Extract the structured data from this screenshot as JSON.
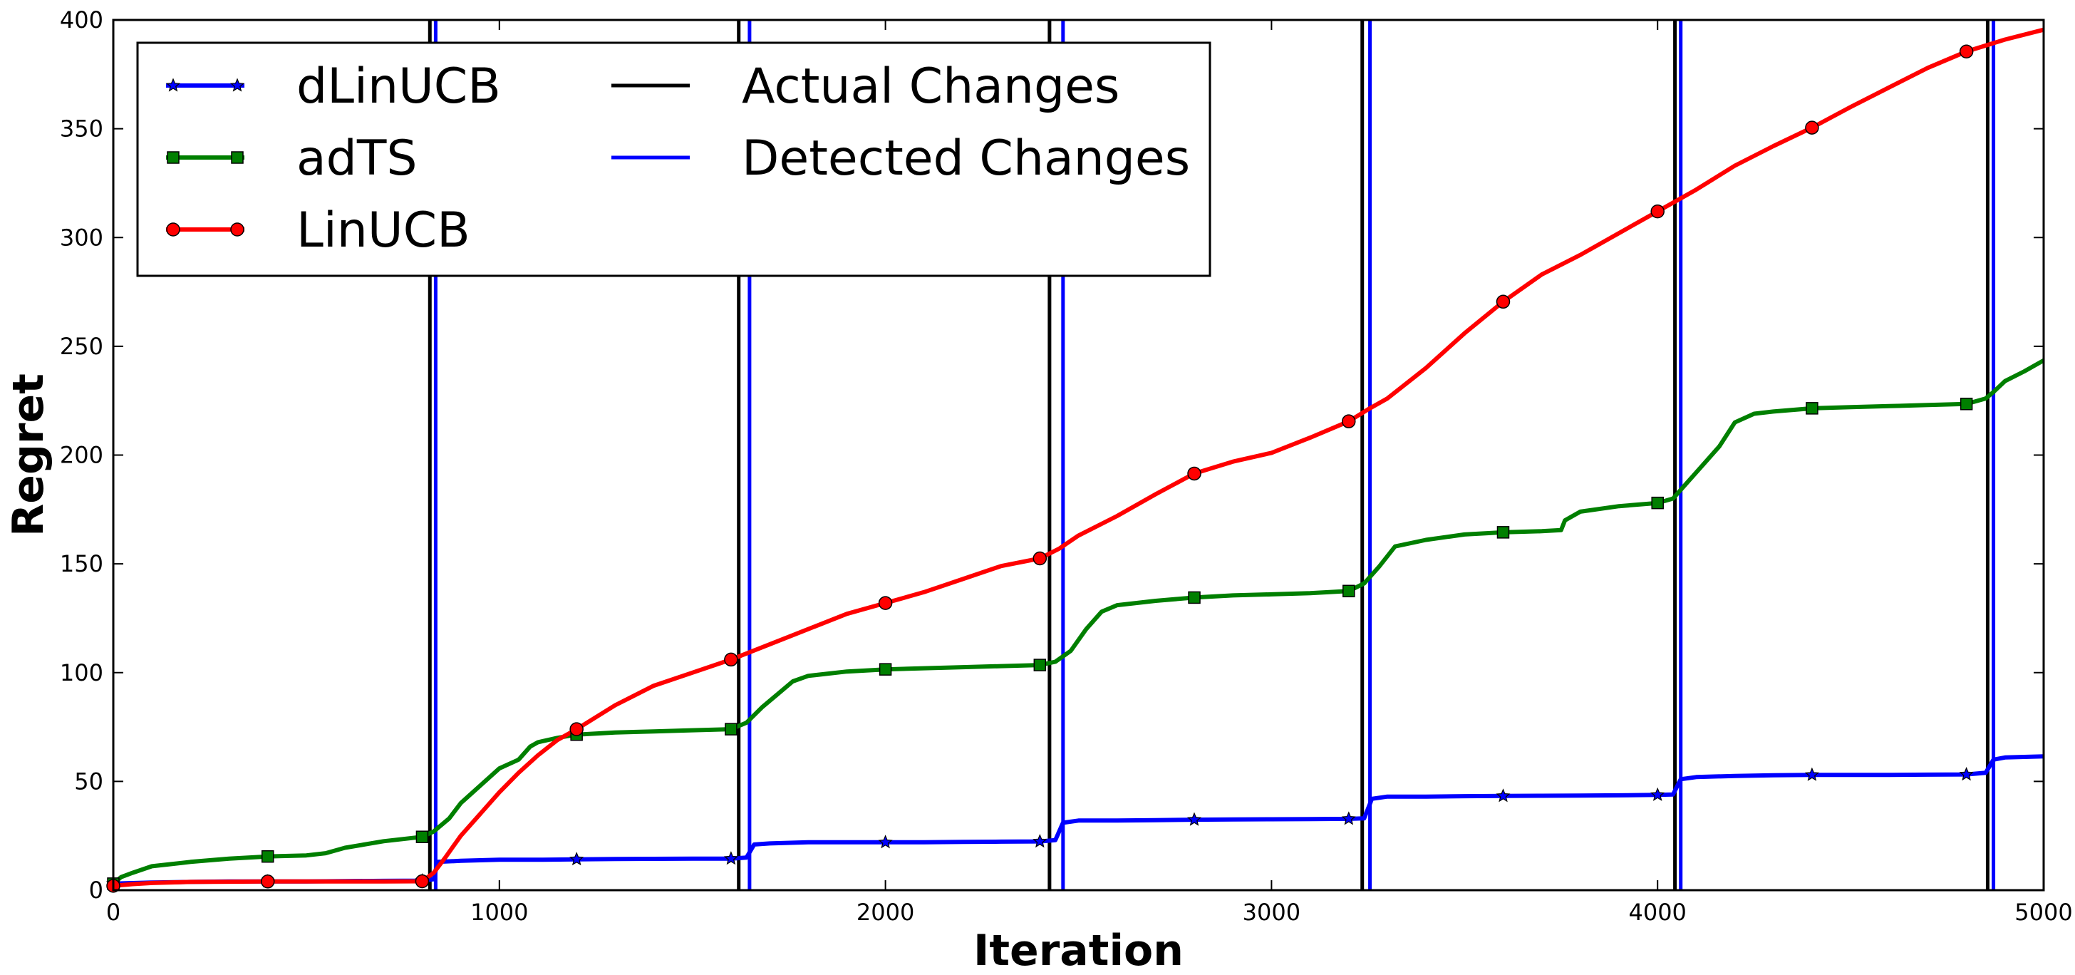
{
  "chart_data": {
    "type": "line",
    "title": "",
    "xlabel": "Iteration",
    "ylabel": "Regret",
    "xlim": [
      0,
      5000
    ],
    "ylim": [
      0,
      400
    ],
    "xticks": [
      0,
      1000,
      2000,
      3000,
      4000,
      5000
    ],
    "yticks": [
      0,
      50,
      100,
      150,
      200,
      250,
      300,
      350,
      400
    ],
    "grid": false,
    "legend_position": "top-left",
    "series": [
      {
        "name": "dLinUCB",
        "color": "#0000ff",
        "marker": "star",
        "x": [
          0,
          100,
          200,
          300,
          400,
          500,
          600,
          700,
          800,
          830,
          840,
          900,
          1000,
          1100,
          1200,
          1300,
          1400,
          1500,
          1600,
          1640,
          1660,
          1700,
          1800,
          1900,
          2000,
          2100,
          2200,
          2300,
          2400,
          2440,
          2460,
          2500,
          2600,
          2700,
          2800,
          2900,
          3000,
          3100,
          3200,
          3240,
          3260,
          3300,
          3400,
          3500,
          3600,
          3700,
          3800,
          3900,
          4000,
          4040,
          4060,
          4100,
          4200,
          4300,
          4400,
          4500,
          4600,
          4700,
          4800,
          4850,
          4870,
          4900,
          5000
        ],
        "y": [
          3,
          3.5,
          3.8,
          4,
          4,
          4,
          4.2,
          4.3,
          4.4,
          5,
          13,
          13.5,
          14,
          14,
          14.2,
          14.3,
          14.4,
          14.5,
          14.5,
          15,
          21,
          21.5,
          22,
          22,
          22,
          22,
          22.2,
          22.3,
          22.4,
          23,
          31,
          32,
          32,
          32.2,
          32.4,
          32.5,
          32.6,
          32.7,
          32.8,
          33,
          42,
          43,
          43,
          43.2,
          43.3,
          43.4,
          43.5,
          43.6,
          43.8,
          44,
          51,
          52,
          52.5,
          52.8,
          53,
          53,
          53,
          53.1,
          53.2,
          54,
          60,
          61,
          61.5
        ],
        "markers_x": [
          0,
          400,
          800,
          1200,
          1600,
          2000,
          2400,
          2800,
          3200,
          3600,
          4000,
          4400,
          4800
        ],
        "markers_y": [
          3,
          4,
          4.4,
          14.2,
          14.5,
          22,
          22.4,
          32.4,
          32.8,
          43.3,
          43.8,
          53,
          53.2
        ]
      },
      {
        "name": "adTS",
        "color": "#007f00",
        "marker": "square",
        "x": [
          0,
          20,
          50,
          100,
          150,
          200,
          300,
          400,
          500,
          550,
          600,
          700,
          800,
          830,
          870,
          900,
          950,
          1000,
          1050,
          1080,
          1100,
          1150,
          1200,
          1300,
          1400,
          1500,
          1600,
          1640,
          1680,
          1720,
          1760,
          1800,
          1900,
          2000,
          2100,
          2200,
          2300,
          2400,
          2440,
          2480,
          2520,
          2560,
          2600,
          2700,
          2800,
          2900,
          3000,
          3100,
          3200,
          3240,
          3280,
          3320,
          3400,
          3500,
          3600,
          3700,
          3750,
          3760,
          3800,
          3900,
          4000,
          4040,
          4080,
          4120,
          4160,
          4200,
          4250,
          4300,
          4400,
          4500,
          4600,
          4700,
          4800,
          4850,
          4870,
          4900,
          4950,
          5000
        ],
        "y": [
          3,
          6,
          8,
          11,
          12,
          13,
          14.5,
          15.5,
          16,
          17,
          19.5,
          22.5,
          24.5,
          27,
          33,
          40,
          48,
          56,
          60,
          66,
          68,
          70,
          71.5,
          72.5,
          73,
          73.5,
          74,
          77,
          84,
          90,
          96,
          98.5,
          100.5,
          101.5,
          102,
          102.5,
          103,
          103.5,
          105,
          110,
          120,
          128,
          131,
          133,
          134.5,
          135.5,
          136,
          136.5,
          137.5,
          141,
          149,
          158,
          161,
          163.5,
          164.5,
          165,
          165.5,
          170,
          174,
          176.5,
          178,
          180,
          188,
          196,
          204,
          215,
          219,
          220,
          221.5,
          222,
          222.5,
          223,
          223.5,
          226,
          229,
          234,
          238.5,
          243.5
        ],
        "markers_x": [
          0,
          400,
          800,
          1200,
          1600,
          2000,
          2400,
          2800,
          3200,
          3600,
          4000,
          4400,
          4800
        ],
        "markers_y": [
          3,
          15.5,
          24.5,
          71.5,
          74,
          101.5,
          103.5,
          134.5,
          137.5,
          164.5,
          178,
          221.5,
          223.5
        ]
      },
      {
        "name": "LinUCB",
        "color": "#ff0000",
        "marker": "circle",
        "x": [
          0,
          50,
          100,
          200,
          300,
          400,
          500,
          600,
          700,
          800,
          830,
          860,
          900,
          950,
          1000,
          1050,
          1100,
          1150,
          1200,
          1300,
          1400,
          1500,
          1600,
          1700,
          1800,
          1900,
          2000,
          2100,
          2200,
          2300,
          2400,
          2450,
          2500,
          2600,
          2700,
          2800,
          2900,
          3000,
          3100,
          3200,
          3250,
          3300,
          3400,
          3500,
          3600,
          3700,
          3800,
          3900,
          4000,
          4100,
          4200,
          4300,
          4400,
          4500,
          4600,
          4700,
          4800,
          4900,
          5000
        ],
        "y": [
          2,
          2.8,
          3.3,
          3.8,
          3.9,
          4,
          4,
          4,
          4,
          4.1,
          8,
          15,
          25,
          35,
          45,
          54,
          62,
          69,
          74,
          85,
          94,
          100,
          106,
          113,
          120,
          127,
          132,
          137,
          143,
          149,
          152.5,
          157,
          163,
          172,
          182,
          191.5,
          197,
          201,
          208,
          215.5,
          221,
          226,
          240,
          256,
          270.5,
          283,
          292,
          302,
          312,
          322,
          333,
          342,
          350.5,
          360,
          369,
          378,
          385.5,
          391,
          395.5
        ],
        "markers_x": [
          0,
          400,
          800,
          1200,
          1600,
          2000,
          2400,
          2800,
          3200,
          3600,
          4000,
          4400,
          4800
        ],
        "markers_y": [
          2,
          4,
          4.1,
          74,
          106,
          132,
          152.5,
          191.5,
          215.5,
          270.5,
          312,
          350.5,
          385.5
        ]
      }
    ],
    "vertical_lines": [
      {
        "name": "Actual Changes",
        "color": "#000000",
        "x": [
          820,
          1620,
          2425,
          3235,
          4045,
          4855
        ]
      },
      {
        "name": "Detected Changes",
        "color": "#0000ff",
        "x": [
          835,
          1648,
          2460,
          3255,
          4060,
          4870
        ]
      }
    ],
    "legend": [
      {
        "label": "dLinUCB",
        "color": "#0000ff",
        "marker": "star",
        "kind": "line"
      },
      {
        "label": "adTS",
        "color": "#007f00",
        "marker": "square",
        "kind": "line"
      },
      {
        "label": "LinUCB",
        "color": "#ff0000",
        "marker": "circle",
        "kind": "line"
      },
      {
        "label": "Actual Changes",
        "color": "#000000",
        "kind": "vline"
      },
      {
        "label": "Detected Changes",
        "color": "#0000ff",
        "kind": "vline"
      }
    ]
  }
}
